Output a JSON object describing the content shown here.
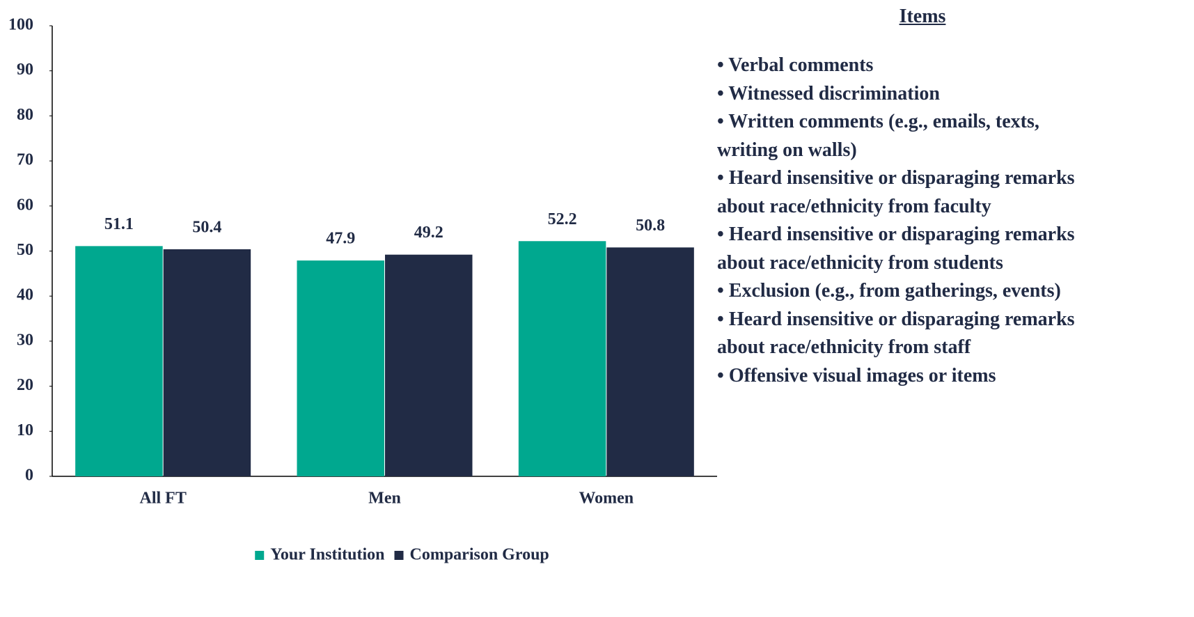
{
  "chart_data": {
    "type": "bar",
    "categories": [
      "All FT",
      "Men",
      "Women"
    ],
    "series": [
      {
        "name": "Your Institution",
        "color": "#00a88f",
        "values": [
          51.1,
          47.9,
          52.2
        ]
      },
      {
        "name": "Comparison Group",
        "color": "#212b45",
        "values": [
          50.4,
          49.2,
          50.8
        ]
      }
    ],
    "ylim": [
      0,
      100
    ],
    "yticks": [
      0,
      10,
      20,
      30,
      40,
      50,
      60,
      70,
      80,
      90,
      100
    ],
    "grid": false,
    "legend": "bottom"
  },
  "items_panel": {
    "title": "Items",
    "items": [
      "Verbal comments",
      "Witnessed discrimination",
      "Written comments (e.g., emails, texts, writing on walls)",
      "Heard insensitive or disparaging remarks about race/ethnicity from faculty",
      "Heard insensitive or disparaging remarks about race/ethnicity from students",
      "Exclusion (e.g., from gatherings, events)",
      "Heard insensitive or disparaging remarks about race/ethnicity from staff",
      "Offensive visual images or items"
    ]
  }
}
